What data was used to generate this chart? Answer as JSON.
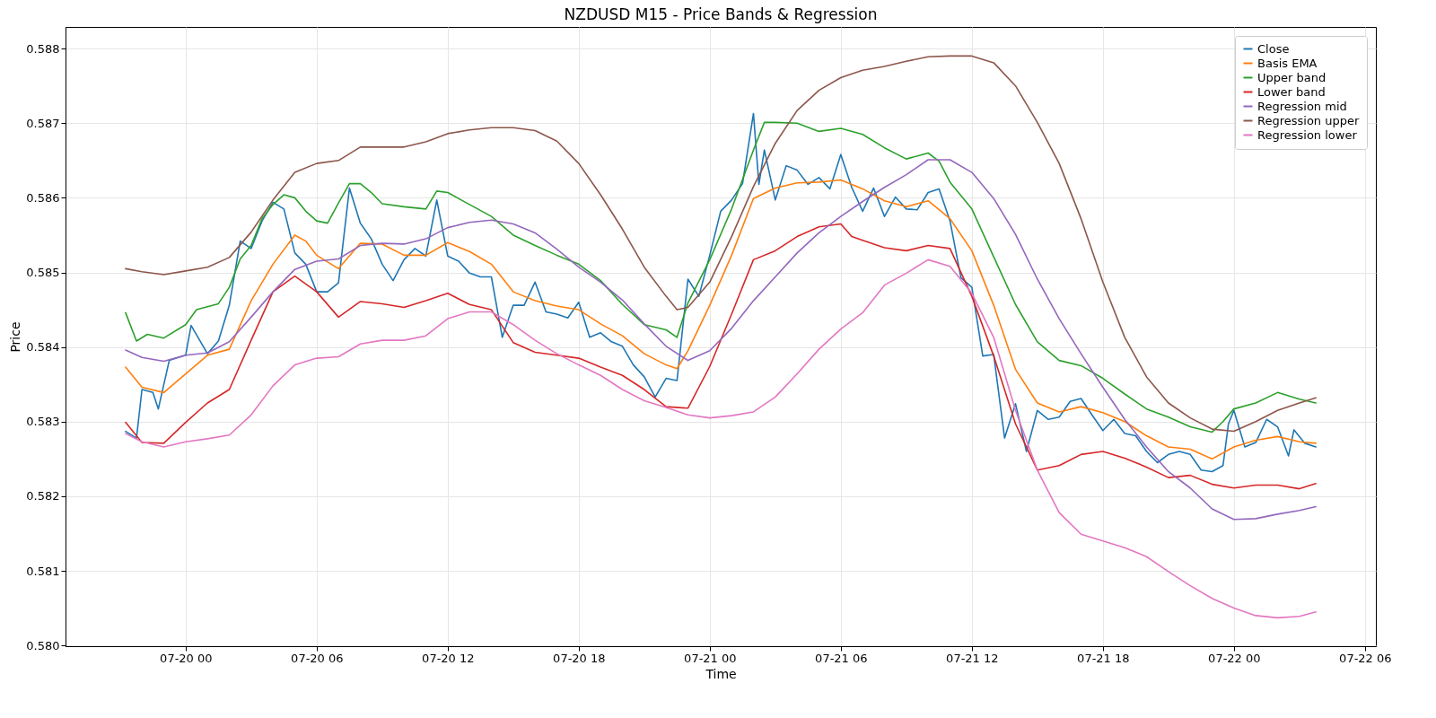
{
  "chart_data": {
    "type": "line",
    "title": "NZDUSD M15 - Price Bands & Regression",
    "xlabel": "Time",
    "ylabel": "Price",
    "grid": true,
    "legend": "top right",
    "xlim": [
      "--07-19T18:30",
      "--07-22T06:30"
    ],
    "xticks": [
      {
        "value": "--07-20T00:00",
        "label": "07-20 00"
      },
      {
        "value": "--07-20T06:00",
        "label": "07-20 06"
      },
      {
        "value": "--07-20T12:00",
        "label": "07-20 12"
      },
      {
        "value": "--07-20T18:00",
        "label": "07-20 18"
      },
      {
        "value": "--07-21T00:00",
        "label": "07-21 00"
      },
      {
        "value": "--07-21T06:00",
        "label": "07-21 06"
      },
      {
        "value": "--07-21T12:00",
        "label": "07-21 12"
      },
      {
        "value": "--07-21T18:00",
        "label": "07-21 18"
      },
      {
        "value": "--07-22T00:00",
        "label": "07-22 00"
      },
      {
        "value": "--07-22T06:00",
        "label": "07-22 06"
      }
    ],
    "ylim": [
      0.57999,
      0.58829
    ],
    "yticks": [
      {
        "value": 0.58,
        "label": "0.580"
      },
      0.581,
      0.582,
      0.583,
      0.584,
      0.585,
      0.586,
      0.587,
      0.588
    ],
    "x": [
      "--07-19T21:15",
      "--07-19T22:00",
      "--07-19T23:00",
      "--07-20T00:00",
      "--07-20T01:00",
      "--07-20T02:00",
      "--07-20T03:00",
      "--07-20T04:00",
      "--07-20T05:00",
      "--07-20T06:00",
      "--07-20T07:00",
      "--07-20T08:00",
      "--07-20T09:00",
      "--07-20T10:00",
      "--07-20T11:00",
      "--07-20T12:00",
      "--07-20T13:00",
      "--07-20T14:00",
      "--07-20T15:00",
      "--07-20T16:00",
      "--07-20T17:00",
      "--07-20T18:00",
      "--07-20T19:00",
      "--07-20T20:00",
      "--07-20T21:00",
      "--07-20T22:00",
      "--07-20T23:00",
      "--07-21T00:00",
      "--07-21T01:00",
      "--07-21T02:00",
      "--07-21T03:00",
      "--07-21T04:00",
      "--07-21T05:00",
      "--07-21T06:00",
      "--07-21T07:00",
      "--07-21T08:00",
      "--07-21T09:00",
      "--07-21T10:00",
      "--07-21T11:00",
      "--07-21T12:00",
      "--07-21T13:00",
      "--07-21T14:00",
      "--07-21T15:00",
      "--07-21T16:00",
      "--07-21T17:00",
      "--07-21T18:00",
      "--07-21T19:00",
      "--07-21T20:00",
      "--07-21T21:00",
      "--07-21T22:00",
      "--07-21T23:00",
      "--07-22T00:00",
      "--07-22T01:00",
      "--07-22T02:00",
      "--07-22T03:00",
      "--07-22T03:45"
    ],
    "series": [
      {
        "name": "Close",
        "color": "#1f77b4",
        "x": [
          "--07-19T21:15",
          "--07-19T21:45",
          "--07-19T22:00",
          "--07-19T22:30",
          "--07-19T22:45",
          "--07-19T23:15",
          "--07-20T00:00",
          "--07-20T00:15",
          "--07-20T01:00",
          "--07-20T01:30",
          "--07-20T02:00",
          "--07-20T02:30",
          "--07-20T03:00",
          "--07-20T03:30",
          "--07-20T04:00",
          "--07-20T04:30",
          "--07-20T05:00",
          "--07-20T05:30",
          "--07-20T06:00",
          "--07-20T06:30",
          "--07-20T07:00",
          "--07-20T07:30",
          "--07-20T08:00",
          "--07-20T08:30",
          "--07-20T09:00",
          "--07-20T09:30",
          "--07-20T10:00",
          "--07-20T10:30",
          "--07-20T11:00",
          "--07-20T11:30",
          "--07-20T12:00",
          "--07-20T12:30",
          "--07-20T13:00",
          "--07-20T13:30",
          "--07-20T14:00",
          "--07-20T14:30",
          "--07-20T15:00",
          "--07-20T15:30",
          "--07-20T16:00",
          "--07-20T16:30",
          "--07-20T17:00",
          "--07-20T17:30",
          "--07-20T18:00",
          "--07-20T18:30",
          "--07-20T19:00",
          "--07-20T19:30",
          "--07-20T20:00",
          "--07-20T20:30",
          "--07-20T21:00",
          "--07-20T21:30",
          "--07-20T22:00",
          "--07-20T22:30",
          "--07-20T23:00",
          "--07-20T23:30",
          "--07-21T00:00",
          "--07-21T00:30",
          "--07-21T01:00",
          "--07-21T01:30",
          "--07-21T02:00",
          "--07-21T02:15",
          "--07-21T02:30",
          "--07-21T03:00",
          "--07-21T03:30",
          "--07-21T04:00",
          "--07-21T04:30",
          "--07-21T05:00",
          "--07-21T05:30",
          "--07-21T06:00",
          "--07-21T06:30",
          "--07-21T07:00",
          "--07-21T07:30",
          "--07-21T08:00",
          "--07-21T08:30",
          "--07-21T09:00",
          "--07-21T09:30",
          "--07-21T10:00",
          "--07-21T10:30",
          "--07-21T11:00",
          "--07-21T11:30",
          "--07-21T12:00",
          "--07-21T12:30",
          "--07-21T13:00",
          "--07-21T13:30",
          "--07-21T14:00",
          "--07-21T14:30",
          "--07-21T15:00",
          "--07-21T15:30",
          "--07-21T16:00",
          "--07-21T16:30",
          "--07-21T17:00",
          "--07-21T17:30",
          "--07-21T18:00",
          "--07-21T18:30",
          "--07-21T19:00",
          "--07-21T19:30",
          "--07-21T20:00",
          "--07-21T20:30",
          "--07-21T21:00",
          "--07-21T21:30",
          "--07-21T22:00",
          "--07-21T22:30",
          "--07-21T23:00",
          "--07-21T23:30",
          "--07-21T23:45",
          "--07-22T00:00",
          "--07-22T00:30",
          "--07-22T01:00",
          "--07-22T01:30",
          "--07-22T02:00",
          "--07-22T02:30",
          "--07-22T02:45",
          "--07-22T03:15",
          "--07-22T03:45"
        ],
        "values": [
          0.58287,
          0.58278,
          0.58343,
          0.58339,
          0.58317,
          0.58382,
          0.58389,
          0.58429,
          0.58391,
          0.58408,
          0.58456,
          0.58542,
          0.58532,
          0.58569,
          0.58594,
          0.58585,
          0.58526,
          0.58511,
          0.58474,
          0.58474,
          0.58486,
          0.58613,
          0.58566,
          0.58545,
          0.58511,
          0.58489,
          0.58517,
          0.58532,
          0.58522,
          0.58597,
          0.58522,
          0.58515,
          0.58499,
          0.58494,
          0.58494,
          0.58413,
          0.58456,
          0.58456,
          0.58487,
          0.58447,
          0.58444,
          0.58439,
          0.5846,
          0.58413,
          0.58419,
          0.58407,
          0.58401,
          0.58376,
          0.5836,
          0.58333,
          0.58358,
          0.58355,
          0.58491,
          0.58468,
          0.58523,
          0.58582,
          0.58597,
          0.58619,
          0.58713,
          0.58618,
          0.58664,
          0.58597,
          0.58643,
          0.58637,
          0.58618,
          0.58627,
          0.58612,
          0.58658,
          0.58614,
          0.58582,
          0.58613,
          0.58575,
          0.58601,
          0.58585,
          0.58584,
          0.58607,
          0.58612,
          0.58569,
          0.58493,
          0.5848,
          0.58388,
          0.5839,
          0.58278,
          0.58324,
          0.5826,
          0.58315,
          0.58303,
          0.58306,
          0.58327,
          0.58331,
          0.58309,
          0.58288,
          0.58303,
          0.58284,
          0.58281,
          0.5826,
          0.58245,
          0.58256,
          0.5826,
          0.58256,
          0.58235,
          0.58233,
          0.58241,
          0.58297,
          0.58315,
          0.58266,
          0.58272,
          0.58303,
          0.58293,
          0.58254,
          0.58289,
          0.58271,
          0.58266
        ]
      },
      {
        "name": "Basis EMA",
        "color": "#ff7f0e",
        "x": [
          "--07-19T21:15",
          "--07-19T22:00",
          "--07-19T23:00",
          "--07-20T00:00",
          "--07-20T01:00",
          "--07-20T02:00",
          "--07-20T03:00",
          "--07-20T04:00",
          "--07-20T05:00",
          "--07-20T05:30",
          "--07-20T06:00",
          "--07-20T07:00",
          "--07-20T08:00",
          "--07-20T09:00",
          "--07-20T10:00",
          "--07-20T11:00",
          "--07-20T12:00",
          "--07-20T13:00",
          "--07-20T14:00",
          "--07-20T15:00",
          "--07-20T16:00",
          "--07-20T17:00",
          "--07-20T18:00",
          "--07-20T19:00",
          "--07-20T20:00",
          "--07-20T21:00",
          "--07-20T22:00",
          "--07-20T22:30",
          "--07-20T23:00",
          "--07-21T00:00",
          "--07-21T01:00",
          "--07-21T02:00",
          "--07-21T03:00",
          "--07-21T04:00",
          "--07-21T05:00",
          "--07-21T06:00",
          "--07-21T07:00",
          "--07-21T08:00",
          "--07-21T09:00",
          "--07-21T10:00",
          "--07-21T11:00",
          "--07-21T12:00",
          "--07-21T13:00",
          "--07-21T14:00",
          "--07-21T15:00",
          "--07-21T16:00",
          "--07-21T17:00",
          "--07-21T18:00",
          "--07-21T19:00",
          "--07-21T20:00",
          "--07-21T21:00",
          "--07-21T22:00",
          "--07-21T23:00",
          "--07-22T00:00",
          "--07-22T01:00",
          "--07-22T02:00",
          "--07-22T03:00",
          "--07-22T03:45"
        ],
        "values": [
          0.58373,
          0.58346,
          0.58339,
          0.58364,
          0.58389,
          0.58397,
          0.58462,
          0.58511,
          0.5855,
          0.58542,
          0.58523,
          0.58505,
          0.58539,
          0.58538,
          0.58523,
          0.58523,
          0.5854,
          0.58528,
          0.58511,
          0.58474,
          0.58462,
          0.58455,
          0.5845,
          0.58431,
          0.58415,
          0.58391,
          0.58376,
          0.58371,
          0.58395,
          0.58456,
          0.58523,
          0.58599,
          0.58613,
          0.5862,
          0.58621,
          0.58624,
          0.58612,
          0.58596,
          0.58588,
          0.58596,
          0.58572,
          0.58529,
          0.58456,
          0.5837,
          0.58325,
          0.58313,
          0.5832,
          0.58312,
          0.583,
          0.58281,
          0.58266,
          0.58263,
          0.5825,
          0.58266,
          0.58275,
          0.5828,
          0.58273,
          0.58271
        ]
      },
      {
        "name": "Upper band",
        "color": "#2ca02c",
        "x": [
          "--07-19T21:15",
          "--07-19T21:45",
          "--07-19T22:15",
          "--07-19T23:00",
          "--07-20T00:00",
          "--07-20T00:30",
          "--07-20T01:30",
          "--07-20T02:00",
          "--07-20T02:30",
          "--07-20T03:00",
          "--07-20T03:30",
          "--07-20T04:00",
          "--07-20T04:30",
          "--07-20T05:00",
          "--07-20T05:30",
          "--07-20T06:00",
          "--07-20T06:30",
          "--07-20T07:00",
          "--07-20T07:30",
          "--07-20T08:00",
          "--07-20T08:30",
          "--07-20T09:00",
          "--07-20T10:00",
          "--07-20T11:00",
          "--07-20T11:30",
          "--07-20T12:00",
          "--07-20T13:00",
          "--07-20T14:00",
          "--07-20T15:00",
          "--07-20T16:00",
          "--07-20T17:00",
          "--07-20T18:00",
          "--07-20T19:00",
          "--07-20T20:00",
          "--07-20T21:00",
          "--07-20T22:00",
          "--07-20T22:30",
          "--07-20T23:00",
          "--07-21T00:00",
          "--07-21T01:00",
          "--07-21T02:00",
          "--07-21T02:30",
          "--07-21T03:00",
          "--07-21T04:00",
          "--07-21T05:00",
          "--07-21T06:00",
          "--07-21T07:00",
          "--07-21T08:00",
          "--07-21T09:00",
          "--07-21T10:00",
          "--07-21T10:30",
          "--07-21T11:00",
          "--07-21T12:00",
          "--07-21T13:00",
          "--07-21T14:00",
          "--07-21T15:00",
          "--07-21T16:00",
          "--07-21T17:00",
          "--07-21T18:00",
          "--07-21T19:00",
          "--07-21T20:00",
          "--07-21T21:00",
          "--07-21T22:00",
          "--07-21T23:00",
          "--07-21T23:30",
          "--07-22T00:00",
          "--07-22T01:00",
          "--07-22T02:00",
          "--07-22T03:00",
          "--07-22T03:45"
        ],
        "values": [
          0.58446,
          0.58408,
          0.58417,
          0.58412,
          0.5843,
          0.5845,
          0.58458,
          0.5848,
          0.58518,
          0.58536,
          0.58572,
          0.58591,
          0.58604,
          0.586,
          0.58582,
          0.58569,
          0.58566,
          0.58593,
          0.58619,
          0.58619,
          0.58607,
          0.58592,
          0.58588,
          0.58585,
          0.58609,
          0.58607,
          0.58591,
          0.58575,
          0.5855,
          0.58536,
          0.58523,
          0.58511,
          0.58489,
          0.58457,
          0.5843,
          0.58423,
          0.58413,
          0.58459,
          0.58517,
          0.58585,
          0.58664,
          0.58701,
          0.58701,
          0.587,
          0.58689,
          0.58693,
          0.58685,
          0.58667,
          0.58652,
          0.5866,
          0.58649,
          0.58621,
          0.58585,
          0.58521,
          0.58457,
          0.58407,
          0.58382,
          0.58375,
          0.58358,
          0.58337,
          0.58317,
          0.58306,
          0.58293,
          0.58286,
          0.583,
          0.58317,
          0.58325,
          0.58339,
          0.5833,
          0.58325
        ]
      },
      {
        "name": "Lower band",
        "color": "#d62728",
        "x": [
          "--07-19T21:15",
          "--07-19T22:00",
          "--07-19T23:00",
          "--07-20T00:00",
          "--07-20T01:00",
          "--07-20T02:00",
          "--07-20T03:00",
          "--07-20T04:00",
          "--07-20T05:00",
          "--07-20T06:00",
          "--07-20T07:00",
          "--07-20T08:00",
          "--07-20T09:00",
          "--07-20T10:00",
          "--07-20T11:00",
          "--07-20T12:00",
          "--07-20T13:00",
          "--07-20T14:00",
          "--07-20T15:00",
          "--07-20T16:00",
          "--07-20T17:00",
          "--07-20T18:00",
          "--07-20T19:00",
          "--07-20T20:00",
          "--07-20T21:00",
          "--07-20T22:00",
          "--07-20T23:00",
          "--07-21T00:00",
          "--07-21T01:00",
          "--07-21T02:00",
          "--07-21T03:00",
          "--07-21T04:00",
          "--07-21T05:00",
          "--07-21T06:00",
          "--07-21T06:30",
          "--07-21T07:00",
          "--07-21T08:00",
          "--07-21T09:00",
          "--07-21T10:00",
          "--07-21T11:00",
          "--07-21T12:00",
          "--07-21T13:00",
          "--07-21T14:00",
          "--07-21T15:00",
          "--07-21T16:00",
          "--07-21T17:00",
          "--07-21T18:00",
          "--07-21T19:00",
          "--07-21T20:00",
          "--07-21T21:00",
          "--07-21T22:00",
          "--07-21T23:00",
          "--07-22T00:00",
          "--07-22T01:00",
          "--07-22T02:00",
          "--07-22T03:00",
          "--07-22T03:45"
        ],
        "values": [
          0.58299,
          0.58272,
          0.58271,
          0.58299,
          0.58325,
          0.58343,
          0.58409,
          0.58474,
          0.58495,
          0.58474,
          0.5844,
          0.58461,
          0.58458,
          0.58453,
          0.58462,
          0.58472,
          0.58457,
          0.5845,
          0.58406,
          0.58393,
          0.58389,
          0.58385,
          0.58373,
          0.58362,
          0.58343,
          0.5832,
          0.58318,
          0.58374,
          0.58444,
          0.58517,
          0.58529,
          0.58548,
          0.58561,
          0.58565,
          0.58548,
          0.58543,
          0.58533,
          0.58529,
          0.58536,
          0.58532,
          0.58468,
          0.58388,
          0.58297,
          0.58235,
          0.58241,
          0.58256,
          0.5826,
          0.58251,
          0.58239,
          0.58225,
          0.58228,
          0.58216,
          0.58211,
          0.58215,
          0.58215,
          0.5821,
          0.58217
        ]
      },
      {
        "name": "Regression mid",
        "color": "#9467bd",
        "values": [
          0.58396,
          0.58386,
          0.58381,
          0.58389,
          0.58392,
          0.58407,
          0.5844,
          0.58474,
          0.58504,
          0.58515,
          0.58518,
          0.58536,
          0.58539,
          0.58538,
          0.58545,
          0.5856,
          0.58567,
          0.5857,
          0.58565,
          0.58553,
          0.58531,
          0.58507,
          0.58487,
          0.58463,
          0.58431,
          0.58401,
          0.58382,
          0.58395,
          0.58425,
          0.58462,
          0.58494,
          0.58526,
          0.58553,
          0.58575,
          0.58595,
          0.58614,
          0.58631,
          0.58651,
          0.58651,
          0.58634,
          0.58599,
          0.58551,
          0.58491,
          0.58438,
          0.58391,
          0.58346,
          0.58303,
          0.58266,
          0.58233,
          0.58211,
          0.58183,
          0.58169,
          0.5817,
          0.58176,
          0.58181,
          0.58186
        ]
      },
      {
        "name": "Regression upper",
        "color": "#8c564b",
        "x": [
          "--07-19T21:15",
          "--07-19T22:00",
          "--07-19T23:00",
          "--07-20T00:00",
          "--07-20T01:00",
          "--07-20T02:00",
          "--07-20T03:00",
          "--07-20T04:00",
          "--07-20T05:00",
          "--07-20T06:00",
          "--07-20T07:00",
          "--07-20T08:00",
          "--07-20T09:00",
          "--07-20T10:00",
          "--07-20T11:00",
          "--07-20T12:00",
          "--07-20T13:00",
          "--07-20T14:00",
          "--07-20T15:00",
          "--07-20T16:00",
          "--07-20T17:00",
          "--07-20T18:00",
          "--07-20T19:00",
          "--07-20T20:00",
          "--07-20T21:00",
          "--07-20T22:00",
          "--07-20T22:30",
          "--07-20T23:00",
          "--07-21T00:00",
          "--07-21T01:00",
          "--07-21T02:00",
          "--07-21T03:00",
          "--07-21T04:00",
          "--07-21T05:00",
          "--07-21T06:00",
          "--07-21T07:00",
          "--07-21T08:00",
          "--07-21T09:00",
          "--07-21T10:00",
          "--07-21T11:00",
          "--07-21T12:00",
          "--07-21T13:00",
          "--07-21T14:00",
          "--07-21T15:00",
          "--07-21T16:00",
          "--07-21T17:00",
          "--07-21T18:00",
          "--07-21T19:00",
          "--07-21T20:00",
          "--07-21T21:00",
          "--07-21T22:00",
          "--07-21T23:00",
          "--07-22T00:00",
          "--07-22T01:00",
          "--07-22T02:00",
          "--07-22T03:00",
          "--07-22T03:45"
        ],
        "values": [
          0.58505,
          0.58501,
          0.58497,
          0.58502,
          0.58507,
          0.5852,
          0.58554,
          0.58597,
          0.58634,
          0.58646,
          0.5865,
          0.58668,
          0.58668,
          0.58668,
          0.58675,
          0.58686,
          0.58691,
          0.58694,
          0.58694,
          0.5869,
          0.58676,
          0.58646,
          0.58604,
          0.58558,
          0.58507,
          0.58468,
          0.5845,
          0.58453,
          0.58487,
          0.58548,
          0.58615,
          0.58673,
          0.58717,
          0.58744,
          0.58761,
          0.58771,
          0.58776,
          0.58783,
          0.58789,
          0.5879,
          0.5879,
          0.58781,
          0.5875,
          0.58701,
          0.58646,
          0.58572,
          0.58487,
          0.58413,
          0.5836,
          0.58325,
          0.58305,
          0.5829,
          0.58287,
          0.583,
          0.58315,
          0.58325,
          0.58332
        ]
      },
      {
        "name": "Regression lower",
        "color": "#e377c2",
        "values": [
          0.58284,
          0.58273,
          0.58266,
          0.58273,
          0.58277,
          0.58282,
          0.58309,
          0.58348,
          0.58376,
          0.58385,
          0.58387,
          0.58404,
          0.58409,
          0.58409,
          0.58415,
          0.58438,
          0.58447,
          0.58447,
          0.5843,
          0.58409,
          0.58391,
          0.58376,
          0.58362,
          0.58343,
          0.58328,
          0.58319,
          0.58309,
          0.58305,
          0.58308,
          0.58313,
          0.58333,
          0.58364,
          0.58397,
          0.58424,
          0.58446,
          0.58483,
          0.58499,
          0.58517,
          0.58508,
          0.58472,
          0.58413,
          0.58315,
          0.58235,
          0.58178,
          0.58149,
          0.5814,
          0.58131,
          0.58119,
          0.58099,
          0.5808,
          0.58063,
          0.5805,
          0.5804,
          0.58037,
          0.58039,
          0.58045
        ]
      }
    ]
  }
}
